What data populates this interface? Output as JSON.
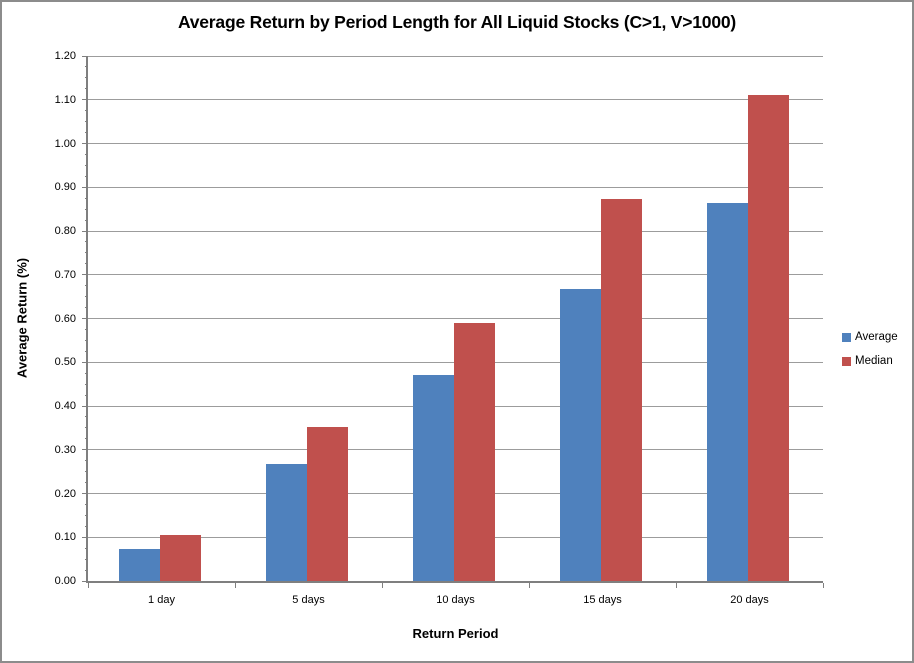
{
  "window": {
    "background": "#ffffff",
    "border_color": "#8c8c8c"
  },
  "chart_data": {
    "type": "bar",
    "title": "Average Return by Period Length for All Liquid Stocks (C>1, V>1000)",
    "xlabel": "Return Period",
    "ylabel": "Average Return (%)",
    "categories": [
      "1 day",
      "5 days",
      "10 days",
      "15 days",
      "20 days"
    ],
    "series": [
      {
        "name": "Average",
        "color": "#4F81BD",
        "values": [
          0.073,
          0.268,
          0.47,
          0.667,
          0.865
        ]
      },
      {
        "name": "Median",
        "color": "#C0504D",
        "values": [
          0.106,
          0.352,
          0.59,
          0.874,
          1.11
        ]
      }
    ],
    "ylim": [
      0,
      1.2
    ],
    "yticks": [
      "0.00",
      "0.10",
      "0.20",
      "0.30",
      "0.40",
      "0.50",
      "0.60",
      "0.70",
      "0.80",
      "0.90",
      "1.00",
      "1.10",
      "1.20"
    ],
    "ytick_major_step": 0.1,
    "ytick_minor_step": 0.025,
    "grid": "horizontal-major",
    "legend_position": "right",
    "legend_labels": [
      "Average",
      "Median"
    ],
    "colors": {
      "gridline": "#9c9c9c",
      "axis_line": "#7f7f7f",
      "text": "#000000",
      "plot_background": "#ffffff"
    }
  }
}
